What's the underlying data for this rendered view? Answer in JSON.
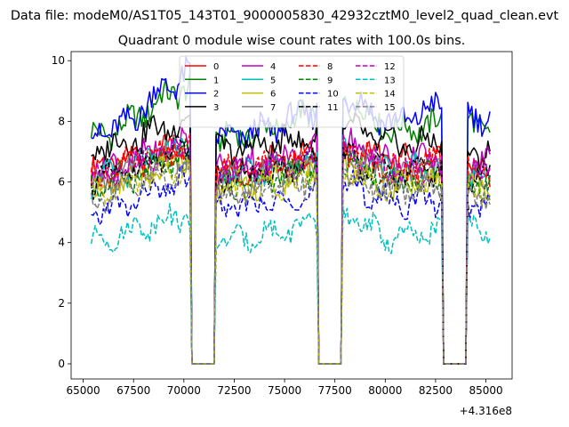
{
  "chart_data": {
    "type": "line",
    "suptitle": "Data file: modeM0/AS1T05_143T01_9000005830_42932cztM0_level2_quad_clean.evt",
    "title": "Quadrant 0 module wise count rates with 100.0s bins.",
    "xlabel": "",
    "ylabel": "",
    "x_offset_label": "+4.316e8",
    "xlim": [
      64400,
      86300
    ],
    "ylim": [
      -0.5,
      10.3
    ],
    "x_ticks": [
      65000,
      67500,
      70000,
      72500,
      75000,
      77500,
      80000,
      82500,
      85000
    ],
    "x_tick_labels": [
      "65000",
      "67500",
      "70000",
      "72500",
      "75000",
      "77500",
      "80000",
      "82500",
      "85000"
    ],
    "y_ticks": [
      0,
      2,
      4,
      6,
      8,
      10
    ],
    "y_tick_labels": [
      "0",
      "2",
      "4",
      "6",
      "8",
      "10"
    ],
    "legend_position": "upper-center",
    "segments": [
      {
        "start": 65400,
        "end": 70200
      },
      {
        "start": 71700,
        "end": 76500
      },
      {
        "start": 78000,
        "end": 82700
      },
      {
        "start": 84200,
        "end": 85200
      }
    ],
    "gaps": [
      {
        "from": 70200,
        "to": 71700
      },
      {
        "from": 76500,
        "to": 78000
      },
      {
        "from": 82700,
        "to": 84200
      }
    ],
    "series": [
      {
        "name": "0",
        "color": "#ff0000",
        "dash": "solid",
        "levels": [
          6.4,
          6.7,
          6.9,
          7.2,
          6.6,
          6.6,
          6.9,
          7.1,
          6.7,
          6.7,
          6.3
        ]
      },
      {
        "name": "1",
        "color": "#008000",
        "dash": "solid",
        "levels": [
          7.5,
          7.8,
          8.6,
          9.2,
          7.4,
          7.7,
          8.3,
          8.7,
          7.7,
          7.9,
          7.8
        ]
      },
      {
        "name": "2",
        "color": "#0000ff",
        "dash": "solid",
        "levels": [
          7.6,
          7.8,
          8.9,
          9.6,
          7.4,
          7.7,
          8.4,
          8.9,
          7.9,
          8.5,
          8.1
        ]
      },
      {
        "name": "3",
        "color": "#000000",
        "dash": "solid",
        "levels": [
          7.0,
          7.3,
          7.7,
          8.0,
          7.0,
          7.2,
          7.5,
          7.8,
          7.2,
          7.3,
          6.9
        ]
      },
      {
        "name": "4",
        "color": "#bf00bf",
        "dash": "solid",
        "levels": [
          6.3,
          6.6,
          7.0,
          7.3,
          6.5,
          6.7,
          7.0,
          7.3,
          6.6,
          6.8,
          6.5
        ]
      },
      {
        "name": "5",
        "color": "#00bfbf",
        "dash": "solid",
        "levels": [
          6.0,
          6.3,
          6.8,
          7.1,
          6.1,
          6.4,
          6.7,
          7.0,
          6.3,
          6.5,
          6.2
        ]
      },
      {
        "name": "6",
        "color": "#bfbf00",
        "dash": "solid",
        "levels": [
          5.7,
          6.0,
          6.4,
          6.7,
          5.8,
          6.0,
          6.3,
          6.6,
          6.0,
          6.1,
          5.8
        ]
      },
      {
        "name": "7",
        "color": "#808080",
        "dash": "solid",
        "levels": [
          5.9,
          6.2,
          6.7,
          7.0,
          6.0,
          6.3,
          6.6,
          6.9,
          6.2,
          6.3,
          6.0
        ]
      },
      {
        "name": "8",
        "color": "#ff0000",
        "dash": "dashed",
        "levels": [
          6.2,
          6.5,
          6.9,
          7.2,
          6.3,
          6.5,
          6.8,
          7.1,
          6.4,
          6.6,
          6.3
        ]
      },
      {
        "name": "9",
        "color": "#008000",
        "dash": "dashed",
        "levels": [
          5.8,
          6.1,
          6.5,
          6.8,
          5.9,
          6.1,
          6.4,
          6.7,
          6.0,
          6.2,
          5.9
        ]
      },
      {
        "name": "10",
        "color": "#0000ff",
        "dash": "dashed",
        "levels": [
          4.9,
          5.2,
          5.7,
          6.0,
          5.1,
          5.3,
          5.6,
          5.9,
          5.3,
          5.4,
          5.2
        ]
      },
      {
        "name": "11",
        "color": "#000000",
        "dash": "dashed",
        "levels": [
          6.0,
          6.3,
          6.7,
          7.0,
          6.1,
          6.3,
          6.6,
          6.9,
          6.2,
          6.4,
          6.1
        ]
      },
      {
        "name": "12",
        "color": "#bf00bf",
        "dash": "dashed",
        "levels": [
          6.1,
          6.4,
          6.8,
          7.1,
          6.2,
          6.4,
          6.7,
          7.0,
          6.3,
          6.5,
          6.2
        ]
      },
      {
        "name": "13",
        "color": "#00bfbf",
        "dash": "dashed",
        "levels": [
          4.0,
          4.3,
          4.7,
          4.9,
          4.0,
          4.3,
          4.6,
          4.9,
          4.1,
          4.4,
          4.4
        ]
      },
      {
        "name": "14",
        "color": "#bfbf00",
        "dash": "dashed",
        "levels": [
          5.6,
          5.9,
          6.3,
          6.6,
          5.7,
          5.9,
          6.2,
          6.5,
          5.8,
          6.0,
          5.7
        ]
      },
      {
        "name": "15",
        "color": "#808080",
        "dash": "dashed",
        "levels": [
          5.4,
          5.7,
          6.1,
          6.4,
          5.5,
          5.7,
          6.0,
          6.3,
          5.6,
          5.8,
          5.5
        ]
      }
    ],
    "level_x": [
      65400,
      67000,
      68600,
      70200,
      71700,
      74100,
      76500,
      78000,
      80400,
      82700,
      85200
    ]
  }
}
